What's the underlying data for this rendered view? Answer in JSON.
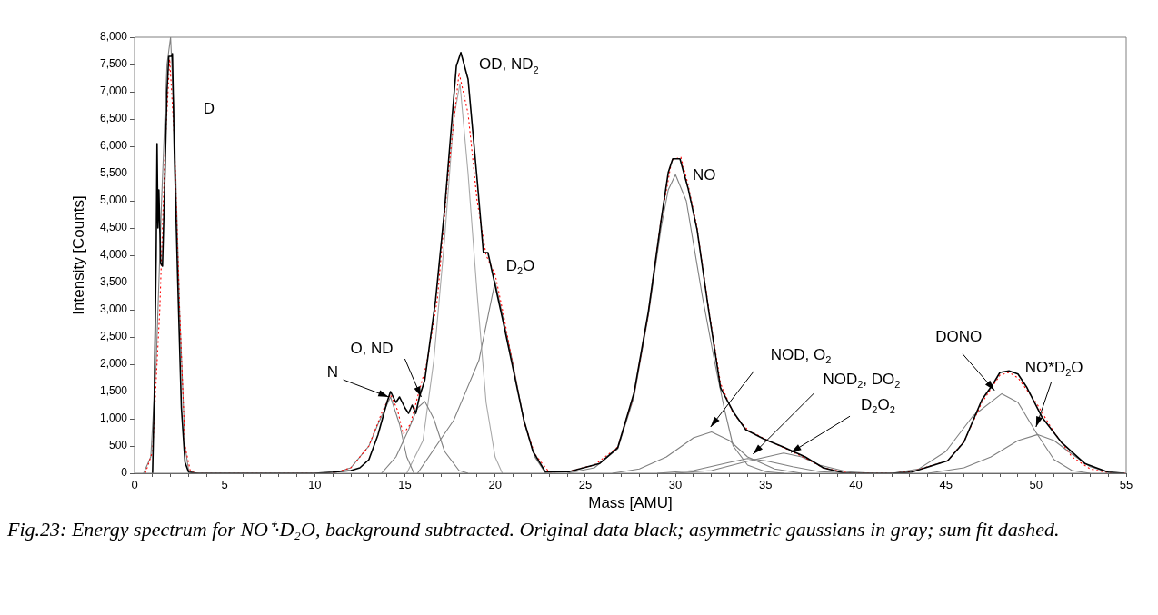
{
  "chart_data": {
    "type": "line",
    "xlabel": "Mass [AMU]",
    "ylabel": "Intensity [Counts]",
    "xlim": [
      0,
      55
    ],
    "ylim": [
      0,
      8000
    ],
    "xticks": [
      0,
      {
        "value": 1,
        "label": null
      },
      {
        "value": 2,
        "label": null
      },
      {
        "value": 3,
        "label": null
      },
      {
        "value": 4,
        "label": null
      },
      5,
      {
        "value": 6,
        "label": null
      },
      {
        "value": 7,
        "label": null
      },
      {
        "value": 8,
        "label": null
      },
      {
        "value": 9,
        "label": null
      },
      10,
      {
        "value": 11,
        "label": null
      },
      {
        "value": 12,
        "label": null
      },
      {
        "value": 13,
        "label": null
      },
      {
        "value": 14,
        "label": null
      },
      15,
      {
        "value": 16,
        "label": null
      },
      {
        "value": 17,
        "label": null
      },
      {
        "value": 18,
        "label": null
      },
      {
        "value": 19,
        "label": null
      },
      20,
      {
        "value": 21,
        "label": null
      },
      {
        "value": 22,
        "label": null
      },
      {
        "value": 23,
        "label": null
      },
      {
        "value": 24,
        "label": null
      },
      25,
      {
        "value": 26,
        "label": null
      },
      {
        "value": 27,
        "label": null
      },
      {
        "value": 28,
        "label": null
      },
      {
        "value": 29,
        "label": null
      },
      30,
      {
        "value": 31,
        "label": null
      },
      {
        "value": 32,
        "label": null
      },
      {
        "value": 33,
        "label": null
      },
      {
        "value": 34,
        "label": null
      },
      35,
      {
        "value": 36,
        "label": null
      },
      {
        "value": 37,
        "label": null
      },
      {
        "value": 38,
        "label": null
      },
      {
        "value": 39,
        "label": null
      },
      40,
      {
        "value": 41,
        "label": null
      },
      {
        "value": 42,
        "label": null
      },
      {
        "value": 43,
        "label": null
      },
      {
        "value": 44,
        "label": null
      },
      45,
      {
        "value": 46,
        "label": null
      },
      {
        "value": 47,
        "label": null
      },
      {
        "value": 48,
        "label": null
      },
      {
        "value": 49,
        "label": null
      },
      50,
      {
        "value": 51,
        "label": null
      },
      {
        "value": 52,
        "label": null
      },
      {
        "value": 53,
        "label": null
      },
      {
        "value": 54,
        "label": null
      },
      55
    ],
    "yticks": [
      0,
      500,
      {
        "value": 1000,
        "label": "1,000"
      },
      {
        "value": 1500,
        "label": "1,500"
      },
      {
        "value": 2000,
        "label": "2,000"
      },
      {
        "value": 2500,
        "label": "2,500"
      },
      {
        "value": 3000,
        "label": "3,000"
      },
      {
        "value": 3500,
        "label": "3,500"
      },
      {
        "value": 4000,
        "label": "4,000"
      },
      {
        "value": 4500,
        "label": "4,500"
      },
      {
        "value": 5000,
        "label": "5,000"
      },
      {
        "value": 5500,
        "label": "5,500"
      },
      {
        "value": 6000,
        "label": "6,000"
      },
      {
        "value": 6500,
        "label": "6,500"
      },
      {
        "value": 7000,
        "label": "7,000"
      },
      {
        "value": 7500,
        "label": "7,500"
      },
      {
        "value": 8000,
        "label": "8,000"
      }
    ],
    "grid": false,
    "legend": false,
    "marker": "none",
    "line_style": "solid",
    "series": [
      {
        "color": "#000000",
        "x": [
          1.0,
          1.1,
          1.2,
          1.25,
          1.3,
          1.35,
          1.45,
          1.55,
          1.65,
          1.8,
          1.9,
          2.05,
          2.1,
          2.2,
          2.4,
          2.6,
          2.8,
          3.0,
          3.5,
          10,
          11,
          12,
          12.5,
          13,
          13.5,
          14,
          14.2,
          14.5,
          14.7,
          15,
          15.2,
          15.4,
          15.6,
          15.8,
          16.1,
          16.7,
          17.2,
          17.85,
          18.1,
          18.5,
          19.0,
          19.35,
          19.6,
          20.4,
          20.9,
          21.6,
          22.1,
          22.8,
          24.1,
          25.8,
          26.8,
          27.7,
          28.5,
          29.2,
          29.6,
          29.85,
          30.25,
          30.7,
          31.2,
          31.85,
          32.5,
          33.2,
          33.9,
          34.9,
          36.0,
          37.2,
          38.2,
          39.4,
          42,
          43.1,
          45.1,
          46.0,
          47.0,
          47.6,
          48.0,
          48.5,
          49.0,
          49.5,
          50.35,
          51.4,
          52.7,
          54.0,
          54.9
        ],
        "values": [
          0,
          1500,
          4000,
          6050,
          4500,
          5200,
          3850,
          3800,
          5000,
          7000,
          7650,
          7650,
          7700,
          6000,
          3500,
          1200,
          200,
          20,
          0,
          0,
          20,
          50,
          100,
          250,
          700,
          1300,
          1500,
          1300,
          1400,
          1200,
          1100,
          1250,
          1100,
          1400,
          1710,
          3180,
          4850,
          7470,
          7720,
          7230,
          5400,
          4050,
          4050,
          2850,
          2070,
          970,
          400,
          20,
          30,
          180,
          470,
          1470,
          2970,
          4630,
          5520,
          5770,
          5770,
          5230,
          4470,
          2970,
          1570,
          1130,
          800,
          630,
          480,
          300,
          100,
          0,
          0,
          20,
          230,
          570,
          1350,
          1630,
          1850,
          1880,
          1820,
          1570,
          1020,
          570,
          180,
          20,
          0
        ]
      },
      {
        "color": "#ff0000",
        "line_style": "dotted",
        "x": [
          0.6,
          1.0,
          1.4,
          1.7,
          1.95,
          2.2,
          2.5,
          2.8,
          3.1,
          3.5,
          11,
          12,
          13,
          13.7,
          14.2,
          14.6,
          14.9,
          15.3,
          15.7,
          16.2,
          16.8,
          17.4,
          18.0,
          18.5,
          19.0,
          19.5,
          20.0,
          20.5,
          21,
          21.6,
          22.2,
          23,
          24,
          25.5,
          26.8,
          27.7,
          28.5,
          29.2,
          29.8,
          30.3,
          30.7,
          31.2,
          31.85,
          32.5,
          33.2,
          34,
          35,
          36,
          37.2,
          38.2,
          39.5,
          42,
          43.1,
          45.1,
          46,
          47,
          48,
          48.5,
          49,
          50,
          51,
          52,
          53,
          54,
          55
        ],
        "values": [
          0,
          400,
          3000,
          6000,
          7600,
          6200,
          3000,
          500,
          30,
          0,
          0,
          100,
          500,
          1100,
          1450,
          1150,
          720,
          900,
          1400,
          2000,
          3200,
          5500,
          7350,
          6600,
          5000,
          4000,
          3650,
          2850,
          1950,
          950,
          350,
          20,
          30,
          150,
          480,
          1450,
          2950,
          4650,
          5750,
          5800,
          5300,
          4500,
          3000,
          1650,
          1100,
          800,
          620,
          470,
          280,
          100,
          10,
          0,
          30,
          230,
          580,
          1300,
          1800,
          1850,
          1750,
          1300,
          750,
          300,
          80,
          10,
          0
        ]
      },
      {
        "color": "#808080",
        "x": [
          0.5,
          0.9,
          1.2,
          1.5,
          1.8,
          2.0,
          2.2,
          2.5,
          2.8,
          3.0,
          3.3
        ],
        "values": [
          0,
          300,
          2000,
          5000,
          7500,
          8000,
          6500,
          3000,
          500,
          50,
          0
        ]
      },
      {
        "color": "#808080",
        "x": [
          11,
          12,
          13,
          13.5,
          14.2,
          14.7,
          15.1,
          15.5
        ],
        "values": [
          0,
          100,
          500,
          900,
          1400,
          900,
          300,
          0
        ]
      },
      {
        "color": "#808080",
        "x": [
          13.7,
          14.5,
          15.2,
          15.7,
          16.1,
          16.6,
          17.2,
          18,
          18.5
        ],
        "values": [
          0,
          300,
          800,
          1200,
          1320,
          1000,
          400,
          50,
          0
        ]
      },
      {
        "color": "#a8a8a8",
        "x": [
          15.1,
          16,
          16.6,
          17.2,
          17.7,
          18.05,
          18.5,
          19.0,
          19.5,
          20.0,
          20.4
        ],
        "values": [
          0,
          600,
          2070,
          4300,
          6500,
          7150,
          5500,
          3300,
          1300,
          300,
          0
        ]
      },
      {
        "color": "#808080",
        "x": [
          15.7,
          17.7,
          19.1,
          20.0,
          21,
          21.6,
          22.2,
          22.8
        ],
        "values": [
          0,
          970,
          2070,
          3520,
          2000,
          950,
          300,
          0
        ]
      },
      {
        "color": "#808080",
        "x": [
          24,
          25.5,
          26.8,
          27.7,
          28.5,
          29.2,
          29.6,
          30.0,
          30.6,
          31.5,
          32.2,
          32.7,
          33.2,
          34,
          35,
          36
        ],
        "values": [
          0,
          100,
          450,
          1400,
          2900,
          4500,
          5200,
          5480,
          5000,
          3230,
          2000,
          1200,
          500,
          150,
          30,
          0
        ]
      },
      {
        "color": "#808080",
        "x": [
          26.5,
          28,
          29.5,
          31,
          32,
          33,
          34,
          35.5,
          37
        ],
        "values": [
          0,
          80,
          300,
          650,
          760,
          600,
          300,
          80,
          0
        ]
      },
      {
        "color": "#808080",
        "x": [
          29,
          31,
          33,
          34,
          35,
          36.5,
          38,
          40
        ],
        "values": [
          0,
          50,
          200,
          270,
          230,
          120,
          30,
          0
        ]
      },
      {
        "color": "#808080",
        "x": [
          30,
          32,
          34,
          36,
          37,
          38,
          39.5,
          41
        ],
        "values": [
          0,
          50,
          220,
          370,
          300,
          150,
          30,
          0
        ]
      },
      {
        "color": "#808080",
        "x": [
          42,
          43.5,
          45,
          46.5,
          48.1,
          49,
          50,
          51,
          52,
          53
        ],
        "values": [
          0,
          80,
          400,
          1050,
          1460,
          1300,
          750,
          250,
          50,
          0
        ]
      },
      {
        "color": "#808080",
        "x": [
          44,
          46,
          47.5,
          49,
          50.1,
          51,
          52,
          53,
          54,
          55
        ],
        "values": [
          0,
          100,
          300,
          600,
          710,
          600,
          350,
          120,
          20,
          0
        ]
      }
    ],
    "annotations": [
      "D",
      {
        "text": "OD, ND$_{2}$",
        "x": 18.1,
        "y": 7720
      },
      {
        "text": "D$_{2}$O",
        "x": 20,
        "y": 3550
      },
      {
        "text": "NO",
        "x": 30.25,
        "y": 5800
      },
      {
        "text": "N",
        "x": 14.1,
        "y": 1400
      },
      {
        "text": "O, ND",
        "x": 15.9,
        "y": 1400
      },
      {
        "text": "NOD, O$_{2}$",
        "x": 31.95,
        "y": 850
      },
      {
        "text": "NOD$_{2}$, DO$_{2}$",
        "x": 34.3,
        "y": 350
      },
      {
        "text": "D$_{2}$O$_{2}$",
        "x": 36.4,
        "y": 380
      },
      {
        "text": "DONO",
        "x": 47.7,
        "y": 1520
      },
      {
        "text": "NO*D$_{2}$O",
        "x": 50.0,
        "y": 850
      },
      "Fig.23: Energy spectrum for NO⁺·D₂O, background subtracted. Original data black; asymmetric gaussians in gray; sum fit dashed."
    ]
  }
}
